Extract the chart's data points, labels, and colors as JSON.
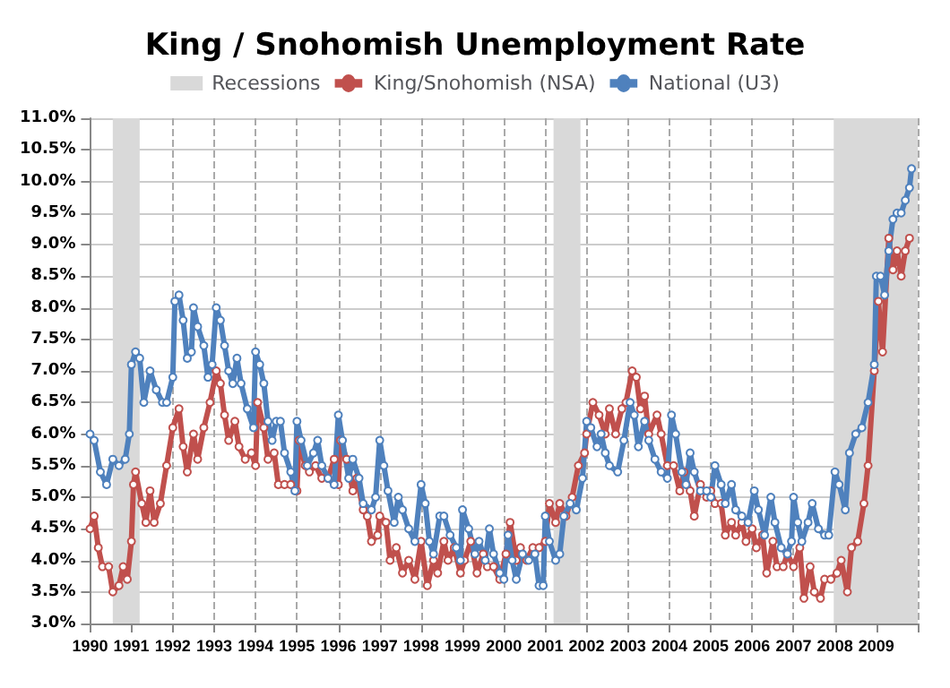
{
  "chart_data": {
    "type": "line",
    "title": "King / Snohomish Unemployment Rate",
    "xlim": [
      1990,
      2010
    ],
    "xticks": [
      1990,
      1991,
      1992,
      1993,
      1994,
      1995,
      1996,
      1997,
      1998,
      1999,
      2000,
      2001,
      2002,
      2003,
      2004,
      2005,
      2006,
      2007,
      2008,
      2009,
      {
        "value": 2010,
        "label": null
      }
    ],
    "ylim": [
      3,
      11
    ],
    "yticks": [
      {
        "value": 3,
        "label": "3.0%"
      },
      {
        "value": 3.5,
        "label": "3.5%"
      },
      {
        "value": 4,
        "label": "4.0%"
      },
      {
        "value": 4.5,
        "label": "4.5%"
      },
      {
        "value": 5,
        "label": "5.0%"
      },
      {
        "value": 5.5,
        "label": "5.5%"
      },
      {
        "value": 6,
        "label": "6.0%"
      },
      {
        "value": 6.5,
        "label": "6.5%"
      },
      {
        "value": 7,
        "label": "7.0%"
      },
      {
        "value": 7.5,
        "label": "7.5%"
      },
      {
        "value": 8,
        "label": "8.0%"
      },
      {
        "value": 8.5,
        "label": "8.5%"
      },
      {
        "value": 9,
        "label": "9.0%"
      },
      {
        "value": 9.5,
        "label": "9.5%"
      },
      {
        "value": 10,
        "label": "10.0%"
      },
      {
        "value": 10.5,
        "label": "10.5%"
      },
      {
        "value": 11,
        "label": "11.0%"
      }
    ],
    "grid": true,
    "legend": "top",
    "marker": "circle",
    "line_style": "solid",
    "bands": [
      {
        "axis": "x",
        "from": 1990.55,
        "to": 1991.2,
        "label": "Recessions",
        "color": "#d9d9d9"
      },
      {
        "axis": "x",
        "from": 2001.2,
        "to": 2001.85,
        "color": "#d9d9d9"
      },
      {
        "axis": "x",
        "from": 2007.97,
        "to": 2010,
        "color": "#d9d9d9"
      }
    ],
    "series": [
      {
        "name": "King/Snohomish (NSA)",
        "color": "#c0504d",
        "x": [
          1990,
          1990.1,
          1990.2,
          1990.3,
          1990.45,
          1990.55,
          1990.7,
          1990.8,
          1990.9,
          1991,
          1991.05,
          1991.1,
          1991.25,
          1991.35,
          1991.45,
          1991.55,
          1991.7,
          1991.85,
          1992,
          1992.15,
          1992.25,
          1992.35,
          1992.5,
          1992.6,
          1992.75,
          1992.9,
          1993.05,
          1993.15,
          1993.25,
          1993.35,
          1993.5,
          1993.6,
          1993.75,
          1993.9,
          1994,
          1994.05,
          1994.2,
          1994.3,
          1994.45,
          1994.55,
          1994.7,
          1994.85,
          1995,
          1995.05,
          1995.2,
          1995.3,
          1995.45,
          1995.6,
          1995.75,
          1995.9,
          1996,
          1996.05,
          1996.2,
          1996.35,
          1996.45,
          1996.6,
          1996.7,
          1996.8,
          1996.95,
          1997,
          1997.15,
          1997.25,
          1997.4,
          1997.55,
          1997.7,
          1997.85,
          1998,
          1998.15,
          1998.3,
          1998.4,
          1998.55,
          1998.65,
          1998.8,
          1998.95,
          1999.05,
          1999.2,
          1999.35,
          1999.5,
          1999.6,
          1999.75,
          1999.9,
          2000.05,
          2000.15,
          2000.3,
          2000.4,
          2000.55,
          2000.7,
          2000.85,
          2001,
          2001.1,
          2001.25,
          2001.35,
          2001.5,
          2001.65,
          2001.8,
          2001.95,
          2002,
          2002.15,
          2002.3,
          2002.45,
          2002.55,
          2002.7,
          2002.85,
          2002.95,
          2003.1,
          2003.2,
          2003.3,
          2003.4,
          2003.5,
          2003.7,
          2003.8,
          2003.95,
          2004.1,
          2004.25,
          2004.35,
          2004.5,
          2004.6,
          2004.75,
          2004.9,
          2005,
          2005.1,
          2005.25,
          2005.35,
          2005.5,
          2005.6,
          2005.75,
          2005.85,
          2006,
          2006.1,
          2006.25,
          2006.35,
          2006.5,
          2006.6,
          2006.75,
          2006.85,
          2007,
          2007.15,
          2007.25,
          2007.4,
          2007.5,
          2007.65,
          2007.75,
          2007.9,
          2008.05,
          2008.15,
          2008.3,
          2008.4,
          2008.55,
          2008.7,
          2008.8,
          2008.95,
          2009.05,
          2009.15,
          2009.3,
          2009.4,
          2009.5,
          2009.6,
          2009.7,
          2009.8
        ],
        "values": [
          4.5,
          4.7,
          4.2,
          3.9,
          3.9,
          3.5,
          3.6,
          3.9,
          3.7,
          4.3,
          5.2,
          5.4,
          4.9,
          4.6,
          5.1,
          4.6,
          4.9,
          5.5,
          6.1,
          6.4,
          5.8,
          5.4,
          6,
          5.6,
          6.1,
          6.5,
          7,
          6.8,
          6.3,
          5.9,
          6.2,
          5.8,
          5.6,
          5.7,
          5.5,
          6.5,
          6.1,
          5.6,
          5.7,
          5.2,
          5.2,
          5.2,
          5.1,
          5.9,
          5.5,
          5.4,
          5.5,
          5.3,
          5.3,
          5.6,
          5.2,
          5.9,
          5.6,
          5.1,
          5.3,
          4.8,
          4.7,
          4.3,
          4.4,
          4.7,
          4.6,
          4,
          4.2,
          3.8,
          4,
          3.7,
          4.3,
          3.6,
          4,
          3.8,
          4.3,
          4,
          4.2,
          3.8,
          4,
          4.3,
          3.8,
          4.1,
          3.9,
          3.9,
          3.7,
          4.1,
          4.6,
          4,
          4.2,
          4,
          4.2,
          4.2,
          4.3,
          4.9,
          4.6,
          4.9,
          4.7,
          5,
          5.5,
          5.7,
          6,
          6.5,
          6.3,
          6,
          6.4,
          6,
          6.4,
          6.5,
          7,
          6.9,
          6.4,
          6.6,
          6,
          6.3,
          6,
          5.5,
          5.5,
          5.1,
          5.4,
          5.1,
          4.7,
          5.2,
          5,
          5.1,
          4.9,
          4.9,
          4.4,
          4.6,
          4.4,
          4.6,
          4.3,
          4.5,
          4.2,
          4.4,
          3.8,
          4.3,
          3.9,
          3.9,
          4.1,
          3.9,
          4.2,
          3.4,
          3.9,
          3.5,
          3.4,
          3.7,
          3.7,
          3.8,
          4,
          3.5,
          4.2,
          4.3,
          4.9,
          5.5,
          7,
          8.1,
          7.3,
          9.1,
          8.6,
          8.9,
          8.5,
          8.9,
          9.1
        ]
      },
      {
        "name": "National (U3)",
        "color": "#4f81bd",
        "x": [
          1990,
          1990.1,
          1990.25,
          1990.4,
          1990.55,
          1990.7,
          1990.85,
          1990.95,
          1991,
          1991.1,
          1991.2,
          1991.3,
          1991.45,
          1991.6,
          1991.75,
          1991.85,
          1992,
          1992.05,
          1992.15,
          1992.25,
          1992.35,
          1992.45,
          1992.5,
          1992.6,
          1992.75,
          1992.85,
          1992.95,
          1993.05,
          1993.15,
          1993.25,
          1993.35,
          1993.45,
          1993.55,
          1993.65,
          1993.8,
          1993.95,
          1994,
          1994.1,
          1994.2,
          1994.3,
          1994.4,
          1994.5,
          1994.6,
          1994.7,
          1994.85,
          1994.95,
          1995,
          1995.1,
          1995.25,
          1995.4,
          1995.5,
          1995.6,
          1995.75,
          1995.9,
          1996,
          1996.1,
          1996.25,
          1996.35,
          1996.5,
          1996.6,
          1996.8,
          1996.9,
          1997,
          1997.1,
          1997.2,
          1997.35,
          1997.45,
          1997.55,
          1997.7,
          1997.85,
          1998,
          1998.1,
          1998.2,
          1998.3,
          1998.45,
          1998.55,
          1998.7,
          1998.85,
          1998.95,
          1999,
          1999.15,
          1999.3,
          1999.4,
          1999.55,
          1999.65,
          1999.75,
          1999.9,
          2000,
          2000.1,
          2000.2,
          2000.3,
          2000.45,
          2000.6,
          2000.75,
          2000.85,
          2000.95,
          2001,
          2001.1,
          2001.25,
          2001.35,
          2001.45,
          2001.6,
          2001.75,
          2001.9,
          2002,
          2002.1,
          2002.25,
          2002.35,
          2002.45,
          2002.55,
          2002.75,
          2002.9,
          2003.05,
          2003.15,
          2003.25,
          2003.4,
          2003.5,
          2003.65,
          2003.8,
          2003.95,
          2004.05,
          2004.15,
          2004.3,
          2004.4,
          2004.5,
          2004.6,
          2004.75,
          2004.9,
          2005,
          2005.1,
          2005.25,
          2005.35,
          2005.5,
          2005.6,
          2005.75,
          2005.9,
          2006.05,
          2006.15,
          2006.3,
          2006.45,
          2006.55,
          2006.7,
          2006.85,
          2006.95,
          2007,
          2007.1,
          2007.2,
          2007.35,
          2007.45,
          2007.6,
          2007.75,
          2007.85,
          2008,
          2008.1,
          2008.25,
          2008.35,
          2008.5,
          2008.65,
          2008.8,
          2008.95,
          2009,
          2009.1,
          2009.2,
          2009.3,
          2009.4,
          2009.5,
          2009.6,
          2009.7,
          2009.8,
          2009.85
        ],
        "values": [
          6,
          5.9,
          5.4,
          5.2,
          5.6,
          5.5,
          5.6,
          6,
          7.1,
          7.3,
          7.2,
          6.5,
          7,
          6.7,
          6.5,
          6.5,
          6.9,
          8.1,
          8.2,
          7.8,
          7.2,
          7.3,
          8,
          7.7,
          7.4,
          6.9,
          7.1,
          8,
          7.8,
          7.4,
          7,
          6.8,
          7.2,
          6.8,
          6.4,
          6.1,
          7.3,
          7.1,
          6.8,
          6.2,
          5.9,
          6.2,
          6.2,
          5.7,
          5.4,
          5.1,
          6.2,
          5.9,
          5.5,
          5.7,
          5.9,
          5.5,
          5.3,
          5.2,
          6.3,
          5.9,
          5.3,
          5.6,
          5.3,
          4.9,
          4.8,
          5,
          5.9,
          5.5,
          5.1,
          4.6,
          5,
          4.8,
          4.5,
          4.3,
          5.2,
          4.9,
          4.3,
          4.1,
          4.7,
          4.7,
          4.4,
          4.2,
          4,
          4.8,
          4.5,
          4.1,
          4.3,
          4,
          4.5,
          4.1,
          3.8,
          3.7,
          4.4,
          4,
          3.7,
          4.1,
          4,
          4.1,
          3.6,
          3.6,
          4.7,
          4.3,
          4,
          4.1,
          4.7,
          4.9,
          4.8,
          5.3,
          6.2,
          6.1,
          5.8,
          6,
          5.7,
          5.5,
          5.4,
          5.9,
          6.5,
          6.3,
          5.8,
          6.2,
          5.9,
          5.6,
          5.4,
          5.3,
          6.3,
          6,
          5.4,
          5.2,
          5.7,
          5.4,
          5.1,
          5.1,
          5,
          5.5,
          5.2,
          4.9,
          5.2,
          4.8,
          4.7,
          4.6,
          5.1,
          4.8,
          4.4,
          5,
          4.6,
          4.2,
          4.1,
          4.3,
          5,
          4.6,
          4.3,
          4.6,
          4.9,
          4.5,
          4.4,
          4.4,
          5.4,
          5.2,
          4.8,
          5.7,
          6,
          6.1,
          6.5,
          7.1,
          8.5,
          8.5,
          8.2,
          8.9,
          9.4,
          9.5,
          9.5,
          9.7,
          9.9,
          10.2
        ]
      }
    ]
  }
}
